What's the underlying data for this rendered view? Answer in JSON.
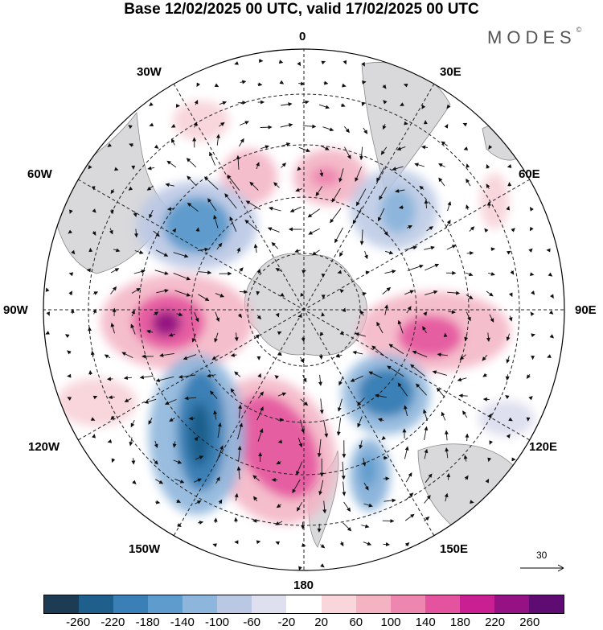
{
  "title": "Base 12/02/2025 00 UTC, valid 17/02/2025 00 UTC",
  "brand": "MODES",
  "brand_mark": "©",
  "longitude_labels": {
    "n": "0",
    "e30": "30E",
    "e60": "60E",
    "e90": "90E",
    "e120": "120E",
    "e150": "150E",
    "s": "180",
    "w150": "150W",
    "w120": "120W",
    "w90": "90W",
    "w60": "60W",
    "w30": "30W"
  },
  "reference_vector": "30",
  "colorbar": {
    "colors": [
      "#1d3b52",
      "#1f5f8c",
      "#3a80b6",
      "#5e9ccd",
      "#8eb6dc",
      "#bac8e4",
      "#dedfef",
      "#ffffff",
      "#f8d6db",
      "#f3b3c3",
      "#ee87b0",
      "#e4549e",
      "#c81f92",
      "#941283",
      "#5e0c72"
    ],
    "labels": [
      "-260",
      "-220",
      "-180",
      "-140",
      "-100",
      "-60",
      "-20",
      "20",
      "60",
      "100",
      "140",
      "180",
      "220",
      "260"
    ]
  }
}
